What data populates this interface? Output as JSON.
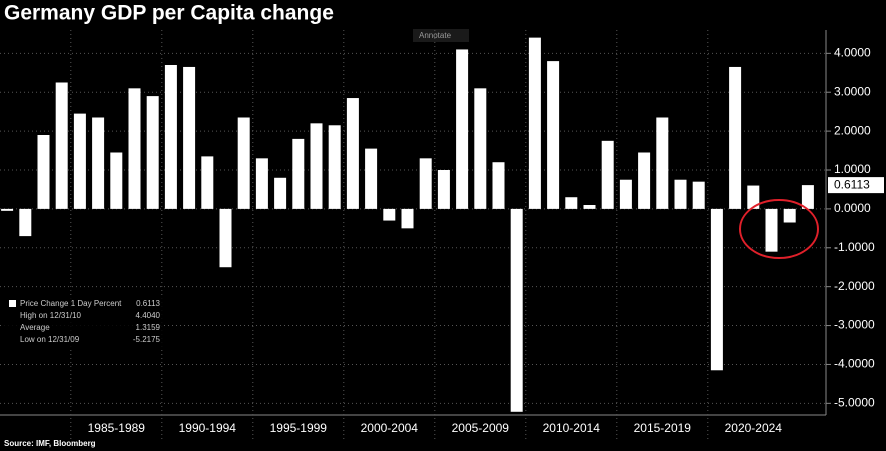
{
  "chart_data": {
    "type": "bar",
    "title": "Germany GDP per Capita change",
    "categories": [
      null,
      null,
      null,
      null,
      null,
      null,
      null,
      null,
      null,
      null,
      null,
      null,
      null,
      null,
      null,
      null,
      null,
      null,
      null,
      null,
      null,
      null,
      null,
      null,
      null,
      null,
      null,
      null,
      null,
      null,
      null,
      null,
      null,
      null,
      null,
      null,
      null,
      null,
      null,
      null,
      null,
      null,
      null,
      null,
      null
    ],
    "values": [
      -0.05,
      -0.7,
      1.9,
      3.25,
      2.45,
      2.35,
      1.45,
      3.1,
      2.9,
      3.7,
      3.65,
      1.35,
      -1.5,
      2.35,
      1.3,
      0.8,
      1.8,
      2.2,
      2.15,
      2.85,
      1.55,
      -0.3,
      -0.5,
      1.3,
      1.0,
      4.1,
      3.1,
      1.2,
      -5.2175,
      4.404,
      3.8,
      0.3,
      0.1,
      1.75,
      0.75,
      1.45,
      2.35,
      0.75,
      0.7,
      -4.15,
      3.65,
      0.6,
      -1.1,
      -0.35,
      0.6113
    ],
    "color": "#ffffff",
    "group_labels": [
      "1985-1989",
      "1990-1994",
      "1995-1999",
      "2000-2004",
      "2005-2009",
      "2010-2014",
      "2015-2019",
      "2020-2024"
    ],
    "ylim": [
      -5.3,
      4.6
    ],
    "yticks": [
      {
        "value": -5,
        "label": "-5.0000"
      },
      {
        "value": -4,
        "label": "-4.0000"
      },
      {
        "value": -3,
        "label": "-3.0000"
      },
      {
        "value": -2,
        "label": "-2.0000"
      },
      {
        "value": -1,
        "label": "-1.0000"
      },
      {
        "value": 0,
        "label": "0.0000"
      },
      {
        "value": 1,
        "label": "1.0000"
      },
      {
        "value": 2,
        "label": "2.0000"
      },
      {
        "value": 3,
        "label": "3.0000"
      },
      {
        "value": 4,
        "label": "4.0000"
      }
    ],
    "grid": true,
    "legend": [
      [
        "Price Change 1 Day Percent",
        "0.6113"
      ],
      [
        "High on 12/31/10",
        "4.4040"
      ],
      [
        "Average",
        "1.3159"
      ],
      [
        "Low on 12/31/09",
        "-5.2175"
      ]
    ],
    "button": "Annotate",
    "source": "Source: IMF, Bloomberg"
  }
}
